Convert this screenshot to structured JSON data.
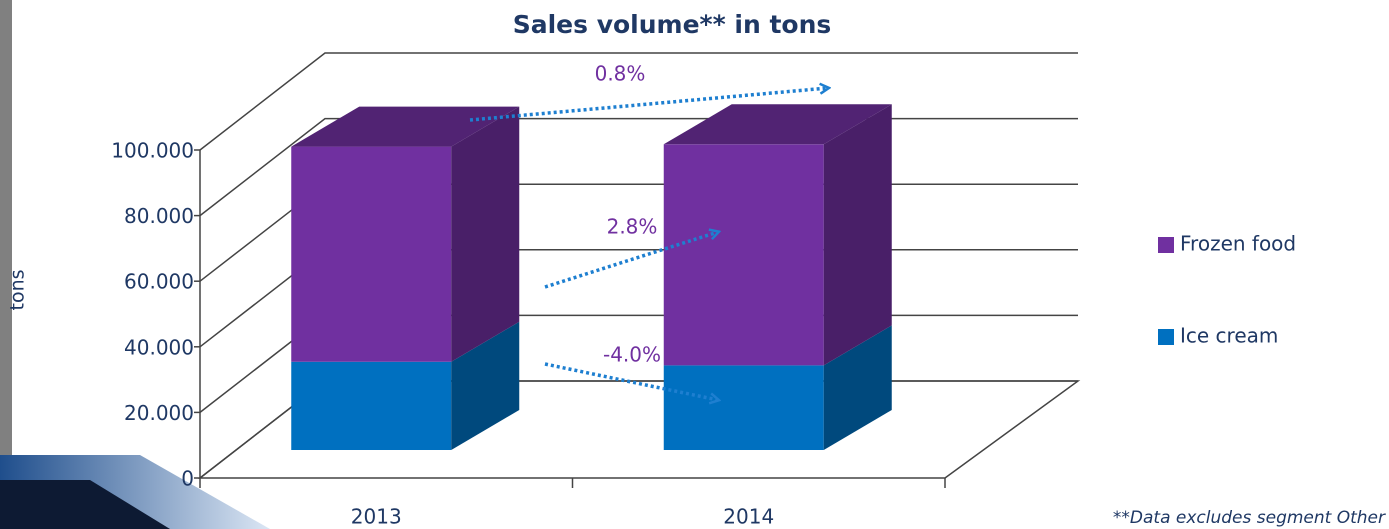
{
  "chart_data": {
    "type": "bar3d_stacked",
    "title": "Sales volume** in tons",
    "y_label": "tons",
    "categories": [
      "2013",
      "2014"
    ],
    "series": [
      {
        "name": "Ice cream",
        "color": "#0070c0",
        "values": [
          26900,
          25800
        ]
      },
      {
        "name": "Frozen food",
        "color": "#7030a0",
        "values": [
          65600,
          67400
        ]
      }
    ],
    "ylim": [
      0,
      100000
    ],
    "yticks": [
      0,
      {
        "value": 20000,
        "label": "20.000"
      },
      {
        "value": 40000,
        "label": "40.000"
      },
      {
        "value": 60000,
        "label": "60.000"
      },
      {
        "value": 80000,
        "label": "80.000"
      },
      {
        "value": 100000,
        "label": "100.000"
      }
    ],
    "annotations": [
      "0.8%",
      "2.8%",
      "-4.0%"
    ],
    "footnote": "**Data excludes segment Other",
    "legend": "right",
    "grid": true
  }
}
